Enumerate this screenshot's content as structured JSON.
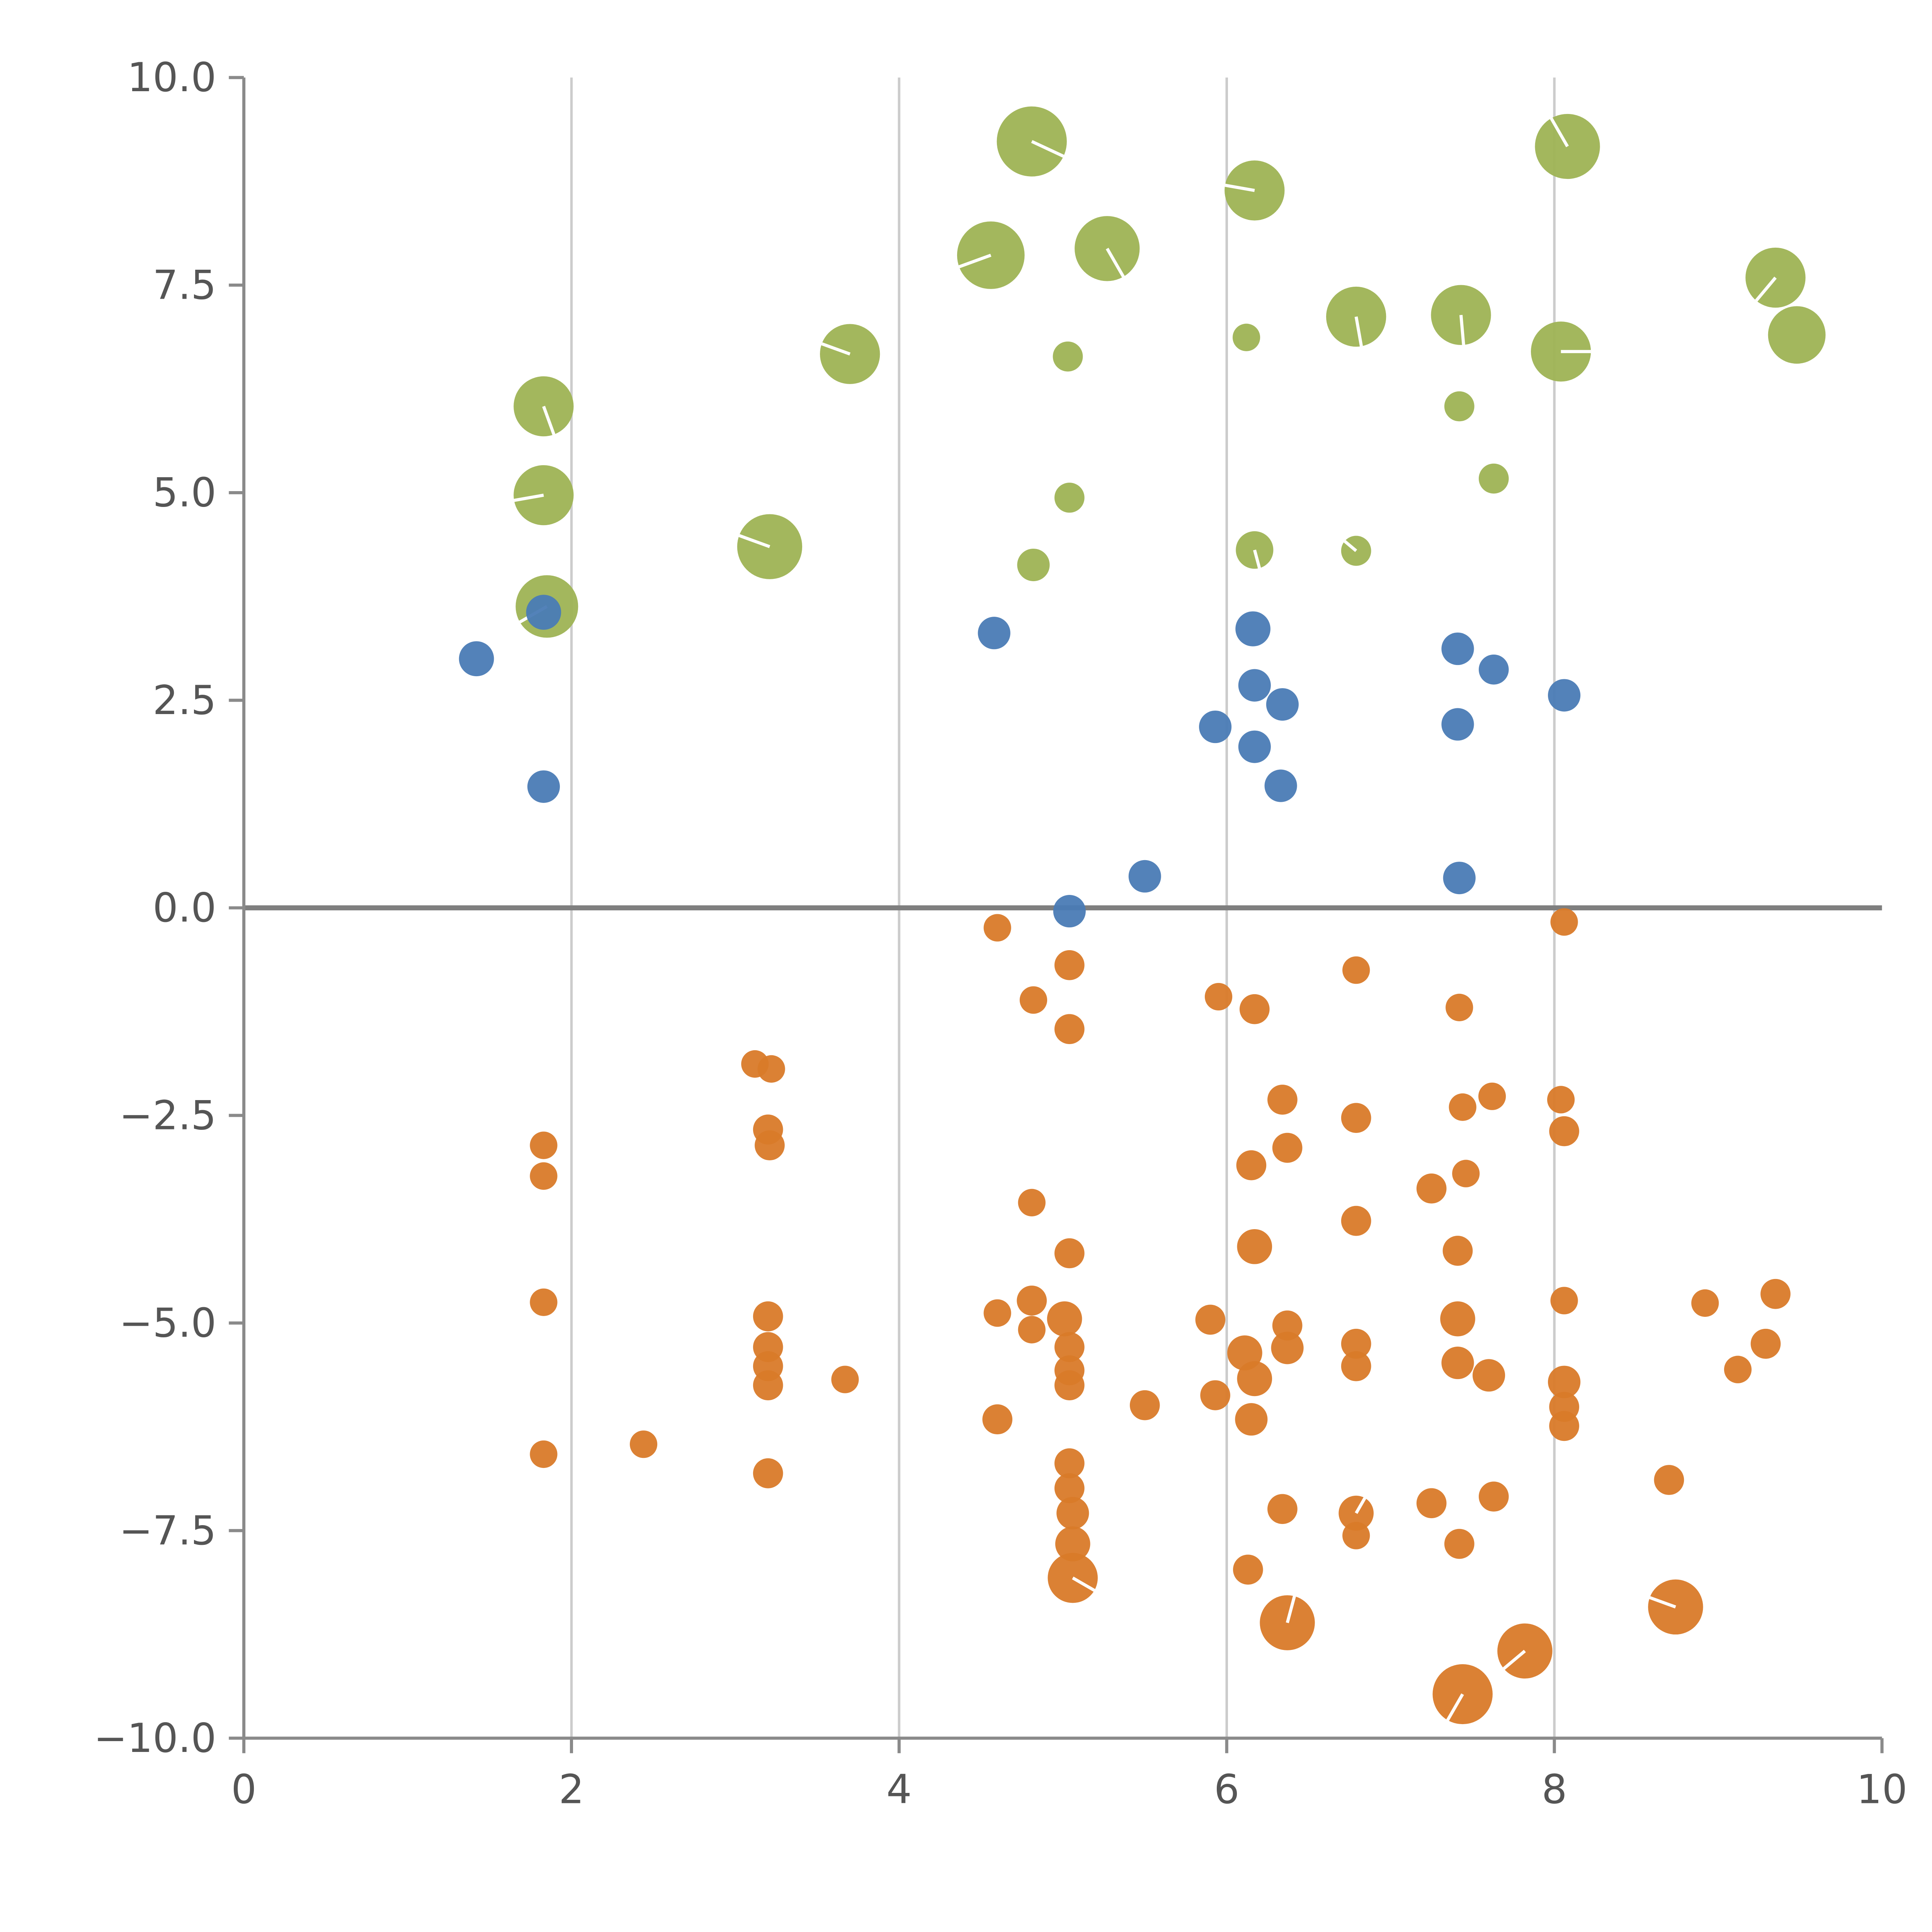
{
  "chart_data": {
    "type": "scatter",
    "title": "",
    "xlabel": "",
    "ylabel": "",
    "xlim": [
      0,
      10
    ],
    "ylim": [
      -10,
      10
    ],
    "x_ticks": [
      0,
      2,
      4,
      6,
      8,
      10
    ],
    "x_tick_labels": [
      "0",
      "2",
      "4",
      "6",
      "8",
      "10"
    ],
    "y_ticks": [
      10.0,
      7.5,
      5.0,
      2.5,
      0.0,
      -2.5,
      -5.0,
      -7.5,
      -10.0
    ],
    "y_tick_labels": [
      "10.0",
      "7.5",
      "5.0",
      "2.5",
      "0.0",
      "−2.5",
      "−5.0",
      "−7.5",
      "−10.0"
    ],
    "gridlines_x": [
      2,
      4,
      6,
      8
    ],
    "grid_color": "#cccccc",
    "zero_line_y": 0,
    "zero_line_color": "#7f7f7f",
    "spine_color": "#8a8a8a",
    "tick_label_color": "#555555",
    "legend": "none",
    "series": [
      {
        "name": "green",
        "color": "#9eb354",
        "points": [
          [
            4.81,
            9.23,
            28,
            -25
          ],
          [
            4.56,
            7.86,
            27,
            200
          ],
          [
            5.27,
            7.94,
            26,
            -60
          ],
          [
            6.17,
            8.64,
            24,
            170
          ],
          [
            8.08,
            9.17,
            26,
            120
          ],
          [
            3.7,
            6.67,
            24,
            160
          ],
          [
            5.03,
            6.64,
            12,
            -1
          ],
          [
            6.12,
            6.87,
            11,
            -1
          ],
          [
            6.79,
            7.12,
            24,
            -80
          ],
          [
            7.43,
            7.14,
            24,
            -85
          ],
          [
            8.04,
            6.7,
            24,
            0
          ],
          [
            9.35,
            7.59,
            24,
            -130
          ],
          [
            9.48,
            6.9,
            23,
            -1
          ],
          [
            7.42,
            6.04,
            12,
            -1
          ],
          [
            1.83,
            6.04,
            24,
            -70
          ],
          [
            1.83,
            4.97,
            24,
            190
          ],
          [
            1.85,
            3.63,
            25,
            210
          ],
          [
            3.21,
            4.35,
            26,
            160
          ],
          [
            5.04,
            4.94,
            12,
            -1
          ],
          [
            4.82,
            4.13,
            13,
            -1
          ],
          [
            6.17,
            4.31,
            15,
            -75
          ],
          [
            6.79,
            4.3,
            12,
            140
          ],
          [
            7.63,
            5.17,
            12,
            -1
          ]
        ]
      },
      {
        "name": "blue",
        "color": "#4a7bb5",
        "points": [
          [
            1.42,
            3.0,
            14,
            -1
          ],
          [
            1.83,
            3.56,
            14,
            -1
          ],
          [
            1.83,
            1.46,
            13,
            -1
          ],
          [
            4.58,
            3.31,
            13,
            -1
          ],
          [
            6.16,
            3.36,
            14,
            -1
          ],
          [
            6.17,
            2.68,
            13,
            -1
          ],
          [
            6.34,
            2.45,
            13,
            -1
          ],
          [
            5.93,
            2.18,
            13,
            -1
          ],
          [
            6.17,
            1.94,
            13,
            -1
          ],
          [
            6.33,
            1.47,
            13,
            -1
          ],
          [
            7.41,
            3.12,
            13,
            -1
          ],
          [
            7.63,
            2.87,
            12,
            -1
          ],
          [
            7.41,
            2.21,
            13,
            -1
          ],
          [
            8.06,
            2.56,
            13,
            -1
          ],
          [
            5.04,
            -0.04,
            13,
            -1
          ],
          [
            5.5,
            0.38,
            13,
            -1
          ],
          [
            7.42,
            0.36,
            13,
            -1
          ]
        ]
      },
      {
        "name": "orange",
        "color": "#d97a29",
        "points": [
          [
            4.6,
            -0.24,
            11,
            -1
          ],
          [
            8.06,
            -0.17,
            11,
            -1
          ],
          [
            5.04,
            -0.69,
            12,
            -1
          ],
          [
            4.82,
            -1.11,
            11,
            -1
          ],
          [
            5.04,
            -1.46,
            12,
            -1
          ],
          [
            5.95,
            -1.07,
            11,
            -1
          ],
          [
            6.17,
            -1.22,
            12,
            -1
          ],
          [
            6.79,
            -0.75,
            11,
            -1
          ],
          [
            7.42,
            -1.2,
            11,
            -1
          ],
          [
            3.12,
            -1.88,
            11,
            -1
          ],
          [
            3.22,
            -1.94,
            11,
            -1
          ],
          [
            3.2,
            -2.67,
            12,
            -1
          ],
          [
            3.21,
            -2.86,
            12,
            -1
          ],
          [
            1.83,
            -2.86,
            11,
            -1
          ],
          [
            1.83,
            -3.23,
            11,
            -1
          ],
          [
            6.34,
            -2.31,
            12,
            -1
          ],
          [
            6.37,
            -2.89,
            12,
            -1
          ],
          [
            6.79,
            -2.53,
            12,
            -1
          ],
          [
            6.15,
            -3.1,
            12,
            -1
          ],
          [
            7.44,
            -2.4,
            11,
            -1
          ],
          [
            7.62,
            -2.27,
            11,
            -1
          ],
          [
            7.25,
            -3.38,
            12,
            -1
          ],
          [
            7.46,
            -3.2,
            11,
            -1
          ],
          [
            8.04,
            -2.31,
            11,
            -1
          ],
          [
            8.06,
            -2.69,
            12,
            -1
          ],
          [
            4.81,
            -3.55,
            11,
            -1
          ],
          [
            5.04,
            -4.16,
            12,
            -1
          ],
          [
            6.17,
            -4.08,
            14,
            -1
          ],
          [
            6.79,
            -3.77,
            12,
            -1
          ],
          [
            7.41,
            -4.13,
            12,
            -1
          ],
          [
            1.83,
            -4.75,
            11,
            -1
          ],
          [
            4.6,
            -4.88,
            11,
            -1
          ],
          [
            4.81,
            -4.73,
            12,
            -1
          ],
          [
            4.81,
            -5.08,
            11,
            -1
          ],
          [
            5.01,
            -4.95,
            14,
            -1
          ],
          [
            5.04,
            -5.29,
            12,
            -1
          ],
          [
            5.04,
            -5.57,
            12,
            -1
          ],
          [
            5.04,
            -5.75,
            12,
            -1
          ],
          [
            3.2,
            -4.92,
            12,
            -1
          ],
          [
            3.2,
            -5.29,
            12,
            -1
          ],
          [
            3.2,
            -5.52,
            12,
            -1
          ],
          [
            3.2,
            -5.75,
            12,
            -1
          ],
          [
            3.67,
            -5.68,
            11,
            -1
          ],
          [
            5.9,
            -4.96,
            12,
            -1
          ],
          [
            6.11,
            -5.36,
            14,
            -1
          ],
          [
            6.17,
            -5.67,
            14,
            -1
          ],
          [
            6.37,
            -5.03,
            12,
            -1
          ],
          [
            6.37,
            -5.3,
            13,
            -1
          ],
          [
            5.93,
            -5.87,
            12,
            -1
          ],
          [
            6.15,
            -6.16,
            13,
            -1
          ],
          [
            5.5,
            -5.99,
            12,
            -1
          ],
          [
            4.6,
            -6.16,
            12,
            -1
          ],
          [
            6.79,
            -5.25,
            12,
            -1
          ],
          [
            6.79,
            -5.52,
            12,
            -1
          ],
          [
            7.41,
            -4.95,
            14,
            -1
          ],
          [
            7.41,
            -5.48,
            13,
            -1
          ],
          [
            7.6,
            -5.63,
            13,
            -1
          ],
          [
            8.06,
            -4.73,
            11,
            -1
          ],
          [
            8.06,
            -5.71,
            13,
            -1
          ],
          [
            8.06,
            -6.01,
            12,
            -1
          ],
          [
            8.06,
            -6.24,
            12,
            -1
          ],
          [
            8.92,
            -4.76,
            11,
            -1
          ],
          [
            9.35,
            -4.65,
            12,
            -1
          ],
          [
            9.12,
            -5.56,
            11,
            -1
          ],
          [
            9.29,
            -5.25,
            12,
            -1
          ],
          [
            1.83,
            -6.58,
            11,
            -1
          ],
          [
            2.44,
            -6.46,
            11,
            -1
          ],
          [
            3.2,
            -6.81,
            12,
            -1
          ],
          [
            5.04,
            -6.69,
            12,
            -1
          ],
          [
            5.04,
            -6.99,
            12,
            -1
          ],
          [
            5.06,
            -7.29,
            13,
            -1
          ],
          [
            5.06,
            -7.66,
            14,
            -1
          ],
          [
            5.06,
            -8.07,
            20,
            -30
          ],
          [
            6.34,
            -7.24,
            12,
            -1
          ],
          [
            6.79,
            -7.29,
            14,
            60
          ],
          [
            6.79,
            -7.56,
            11,
            -1
          ],
          [
            7.25,
            -7.17,
            12,
            -1
          ],
          [
            7.63,
            -7.09,
            12,
            -1
          ],
          [
            7.42,
            -7.66,
            12,
            -1
          ],
          [
            6.13,
            -7.97,
            12,
            -1
          ],
          [
            6.37,
            -8.61,
            22,
            75
          ],
          [
            7.82,
            -8.95,
            22,
            -140
          ],
          [
            7.44,
            -9.47,
            24,
            -120
          ],
          [
            8.74,
            -8.42,
            22,
            160
          ],
          [
            8.7,
            -6.89,
            12,
            -1
          ]
        ]
      }
    ]
  }
}
